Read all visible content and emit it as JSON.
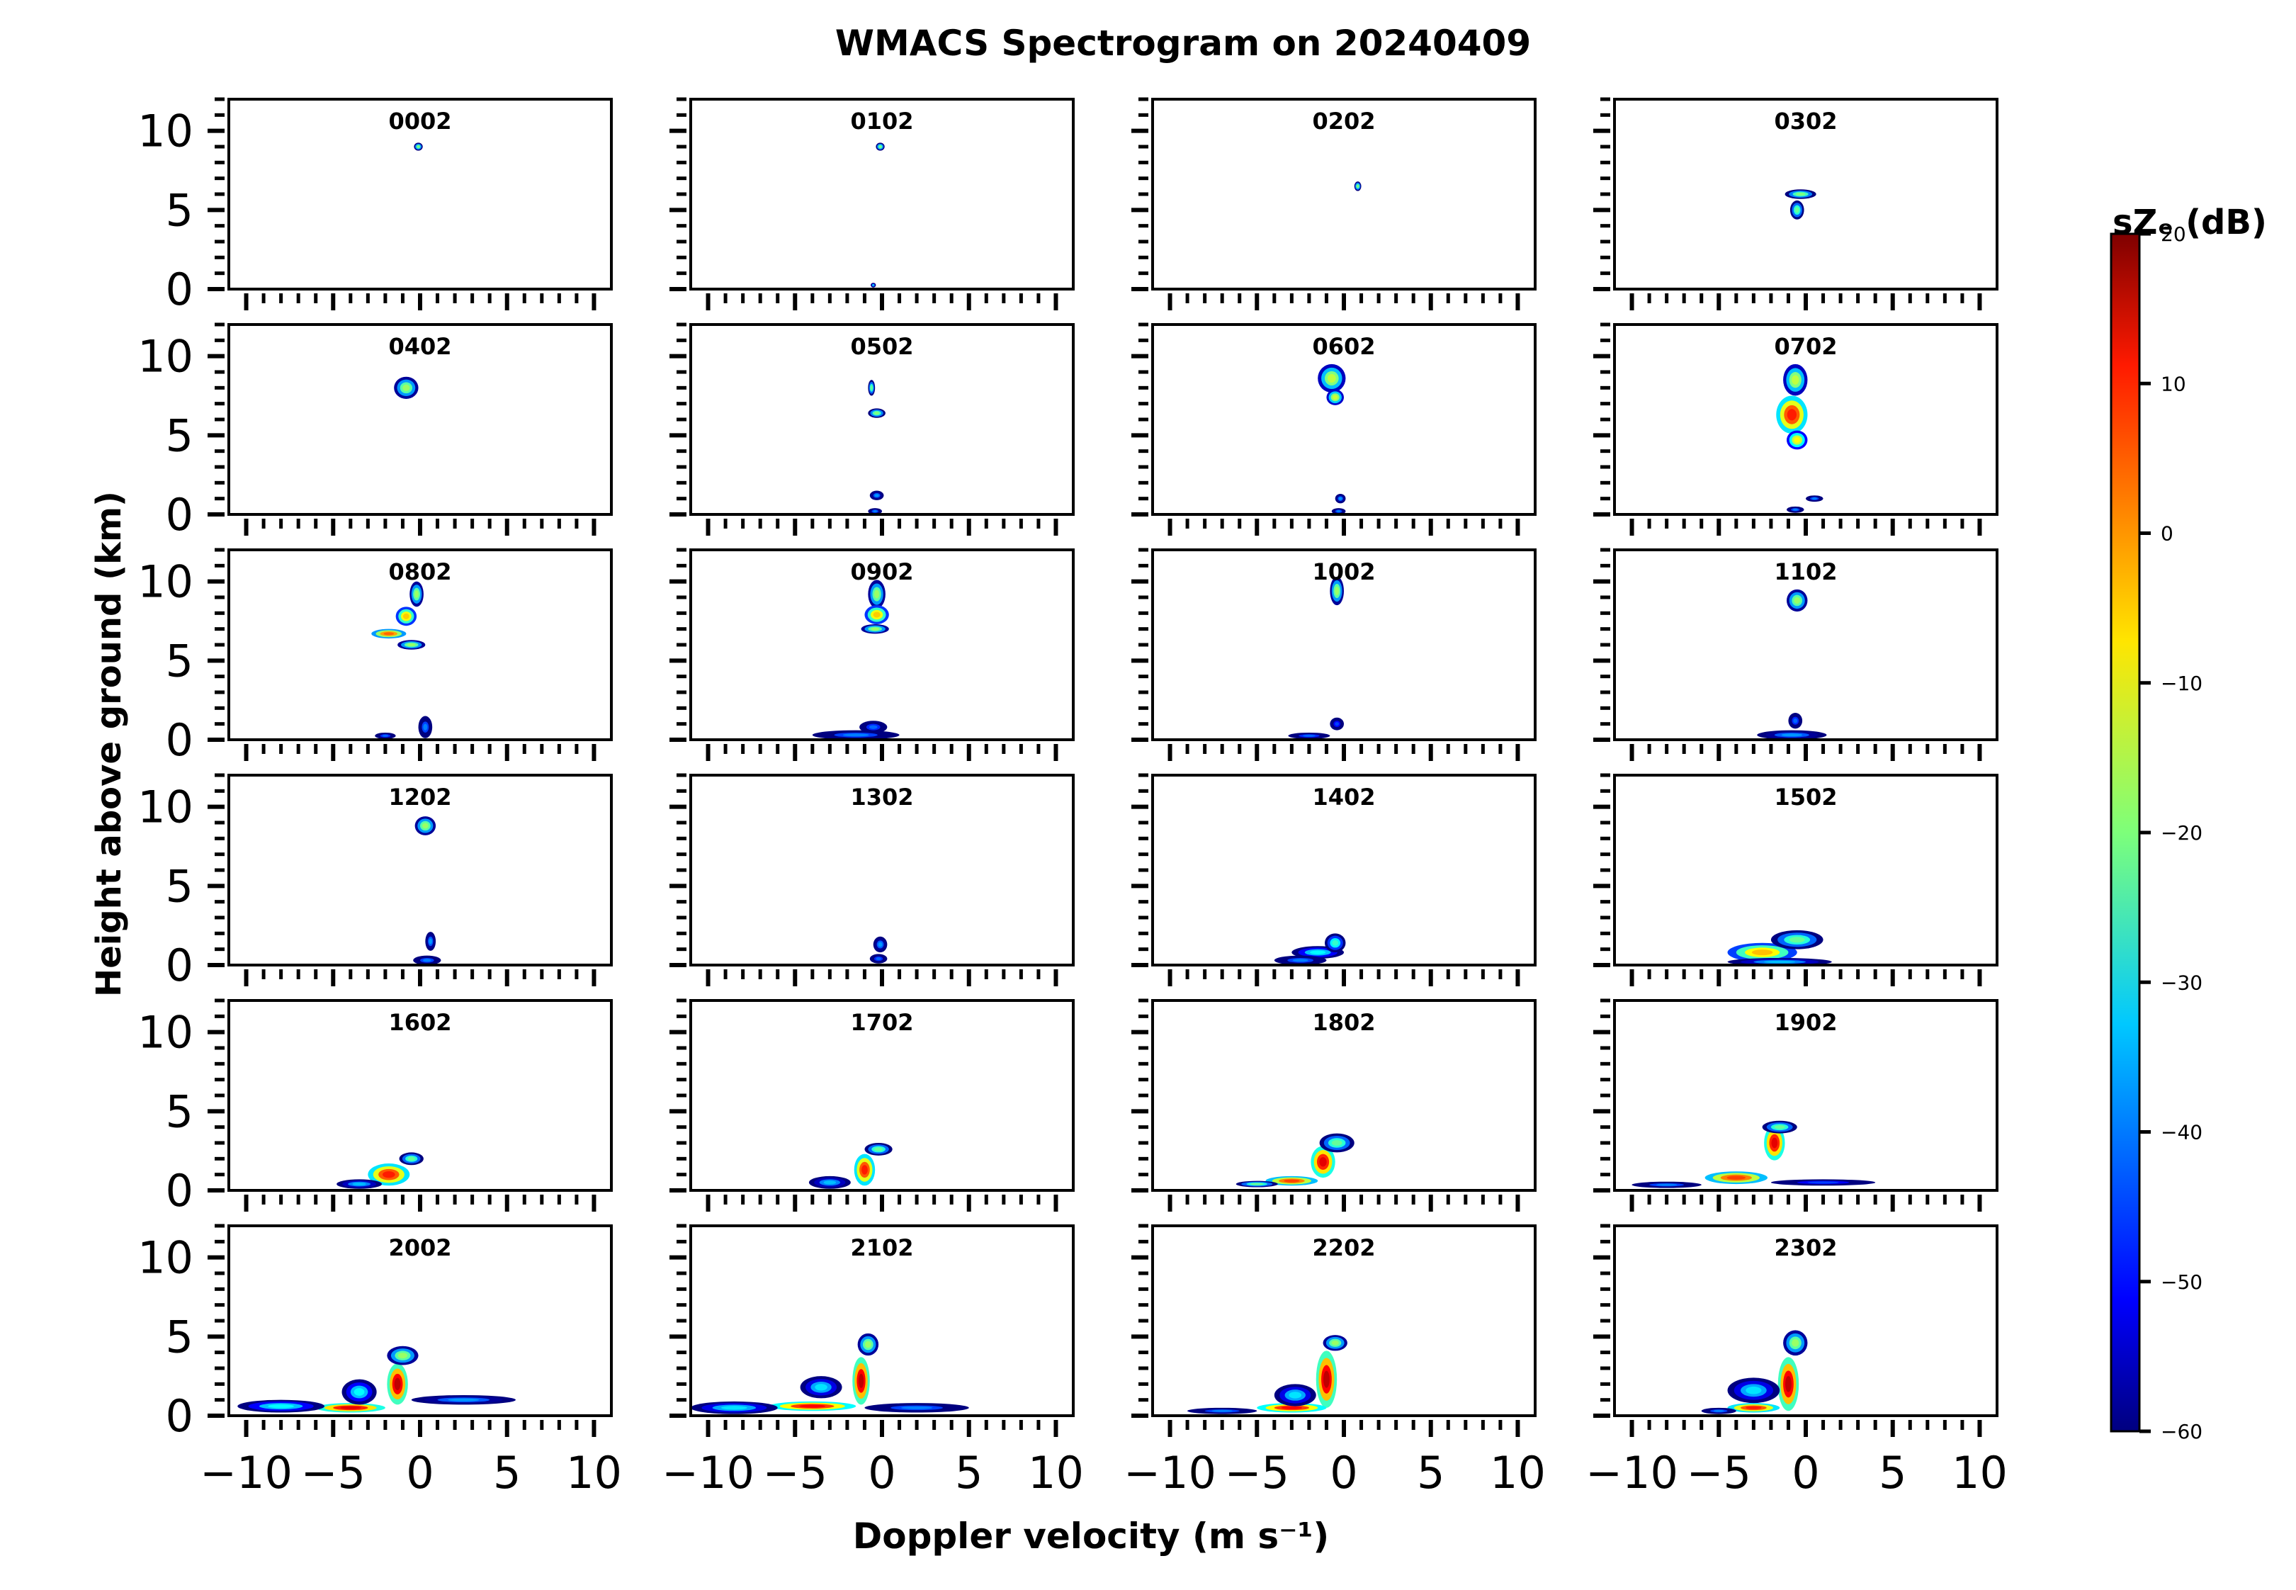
{
  "chart_data": {
    "type": "heatmap",
    "title": "WMACS Spectrogram on 20240409",
    "xlabel": "Doppler velocity (m s⁻¹)",
    "ylabel": "Height above ground (km)",
    "xlim": [
      -11,
      11
    ],
    "ylim": [
      0,
      12
    ],
    "xticks": [
      -10,
      -5,
      0,
      5,
      10
    ],
    "xtick_labels": [
      "−10",
      "−5",
      "0",
      "5",
      "10"
    ],
    "yticks": [
      0,
      5,
      10
    ],
    "ytick_labels": [
      "0",
      "5",
      "10"
    ],
    "colorbar": {
      "label": "sZₑ (dB)",
      "min": -60,
      "max": 20,
      "ticks": [
        20,
        10,
        0,
        -10,
        -20,
        -30,
        -40,
        -50,
        -60
      ],
      "tick_labels": [
        "20",
        "10",
        "0",
        "−10",
        "−20",
        "−30",
        "−40",
        "−50",
        "−60"
      ],
      "colormap": "jet"
    },
    "panels": [
      {
        "label": "0002",
        "blobs": [
          [
            -0.1,
            9.0,
            0.25,
            0.25,
            -20
          ]
        ]
      },
      {
        "label": "0102",
        "blobs": [
          [
            -0.1,
            9.0,
            0.25,
            0.25,
            -20
          ],
          [
            -0.5,
            0.25,
            0.15,
            0.15,
            -35
          ]
        ]
      },
      {
        "label": "0202",
        "blobs": [
          [
            0.8,
            6.5,
            0.2,
            0.3,
            -20
          ]
        ]
      },
      {
        "label": "0302",
        "blobs": [
          [
            -0.3,
            6.0,
            0.9,
            0.3,
            -20
          ],
          [
            -0.5,
            5.0,
            0.4,
            0.6,
            -22
          ]
        ]
      },
      {
        "label": "0402",
        "blobs": [
          [
            -0.8,
            8.0,
            0.7,
            0.7,
            -18
          ]
        ]
      },
      {
        "label": "0502",
        "blobs": [
          [
            -0.6,
            8.0,
            0.2,
            0.5,
            -22
          ],
          [
            -0.3,
            6.4,
            0.5,
            0.3,
            -20
          ],
          [
            -0.3,
            1.2,
            0.4,
            0.3,
            -38
          ],
          [
            -0.4,
            0.2,
            0.4,
            0.2,
            -40
          ]
        ]
      },
      {
        "label": "0602",
        "blobs": [
          [
            -0.7,
            8.6,
            0.8,
            0.9,
            -15
          ],
          [
            -0.5,
            7.4,
            0.5,
            0.5,
            -14
          ],
          [
            -0.2,
            1.0,
            0.3,
            0.3,
            -38
          ],
          [
            -0.3,
            0.2,
            0.4,
            0.2,
            -40
          ]
        ]
      },
      {
        "label": "0702",
        "blobs": [
          [
            -0.6,
            8.5,
            0.7,
            1.0,
            -15
          ],
          [
            -0.8,
            6.3,
            0.9,
            1.2,
            8
          ],
          [
            -0.5,
            4.7,
            0.6,
            0.6,
            -10
          ],
          [
            0.5,
            1.0,
            0.5,
            0.2,
            -40
          ],
          [
            -0.6,
            0.3,
            0.5,
            0.2,
            -40
          ]
        ]
      },
      {
        "label": "0802",
        "blobs": [
          [
            -0.2,
            9.2,
            0.4,
            0.8,
            -18
          ],
          [
            -0.8,
            7.8,
            0.6,
            0.6,
            -6
          ],
          [
            -1.8,
            6.7,
            1.0,
            0.3,
            2
          ],
          [
            -0.5,
            6.0,
            0.8,
            0.3,
            -18
          ],
          [
            0.3,
            0.8,
            0.4,
            0.7,
            -40
          ],
          [
            -2.0,
            0.25,
            0.6,
            0.2,
            -42
          ]
        ]
      },
      {
        "label": "0902",
        "blobs": [
          [
            -0.3,
            9.2,
            0.5,
            0.9,
            -18
          ],
          [
            -0.3,
            7.9,
            0.7,
            0.6,
            -6
          ],
          [
            -0.4,
            7.0,
            0.8,
            0.3,
            -18
          ],
          [
            -0.5,
            0.8,
            0.8,
            0.4,
            -42
          ],
          [
            -1.5,
            0.3,
            2.5,
            0.3,
            -40
          ]
        ]
      },
      {
        "label": "1002",
        "blobs": [
          [
            -0.4,
            9.4,
            0.4,
            0.9,
            -18
          ],
          [
            -0.4,
            1.0,
            0.4,
            0.4,
            -45
          ],
          [
            -2.0,
            0.25,
            1.2,
            0.2,
            -42
          ]
        ]
      },
      {
        "label": "1102",
        "blobs": [
          [
            -0.5,
            8.8,
            0.6,
            0.7,
            -18
          ],
          [
            -0.6,
            1.2,
            0.4,
            0.5,
            -42
          ],
          [
            -0.8,
            0.3,
            2.0,
            0.3,
            -38
          ]
        ]
      },
      {
        "label": "1202",
        "blobs": [
          [
            0.3,
            8.8,
            0.6,
            0.6,
            -18
          ],
          [
            0.6,
            1.5,
            0.3,
            0.6,
            -38
          ],
          [
            0.4,
            0.3,
            0.8,
            0.3,
            -40
          ]
        ]
      },
      {
        "label": "1302",
        "blobs": [
          [
            -0.1,
            1.3,
            0.4,
            0.5,
            -38
          ],
          [
            -0.2,
            0.4,
            0.5,
            0.3,
            -42
          ]
        ]
      },
      {
        "label": "1402",
        "blobs": [
          [
            -1.5,
            0.8,
            1.5,
            0.4,
            -30
          ],
          [
            -0.5,
            1.4,
            0.6,
            0.6,
            -26
          ],
          [
            -2.5,
            0.3,
            1.5,
            0.3,
            -40
          ]
        ]
      },
      {
        "label": "1502",
        "blobs": [
          [
            -2.5,
            0.8,
            2.0,
            0.6,
            -5
          ],
          [
            -0.5,
            1.6,
            1.5,
            0.6,
            -22
          ],
          [
            -1.5,
            0.2,
            3.0,
            0.25,
            -35
          ]
        ]
      },
      {
        "label": "1602",
        "blobs": [
          [
            -1.8,
            1.0,
            1.2,
            0.7,
            8
          ],
          [
            -0.5,
            2.0,
            0.7,
            0.4,
            -22
          ],
          [
            -3.5,
            0.4,
            1.3,
            0.3,
            -35
          ]
        ]
      },
      {
        "label": "1702",
        "blobs": [
          [
            -1.0,
            1.3,
            0.6,
            1.0,
            8
          ],
          [
            -0.2,
            2.6,
            0.8,
            0.4,
            -22
          ],
          [
            -3.0,
            0.5,
            1.2,
            0.4,
            -35
          ]
        ]
      },
      {
        "label": "1802",
        "blobs": [
          [
            -1.2,
            1.8,
            0.7,
            1.0,
            12
          ],
          [
            -3.0,
            0.6,
            1.5,
            0.3,
            5
          ],
          [
            -0.4,
            3.0,
            1.0,
            0.6,
            -22
          ],
          [
            -5.0,
            0.4,
            1.2,
            0.2,
            -22
          ]
        ]
      },
      {
        "label": "1902",
        "blobs": [
          [
            -1.8,
            3.0,
            0.6,
            1.1,
            12
          ],
          [
            -4.0,
            0.8,
            1.8,
            0.4,
            5
          ],
          [
            -8.0,
            0.35,
            2.0,
            0.2,
            -40
          ],
          [
            1.0,
            0.5,
            3.0,
            0.2,
            -45
          ],
          [
            -1.5,
            4.0,
            1.0,
            0.4,
            -22
          ]
        ]
      },
      {
        "label": "2002",
        "blobs": [
          [
            -1.3,
            2.0,
            0.6,
            1.3,
            15
          ],
          [
            -4.0,
            0.5,
            2.0,
            0.3,
            12
          ],
          [
            -8.0,
            0.6,
            2.5,
            0.4,
            -30
          ],
          [
            2.5,
            1.0,
            3.0,
            0.3,
            -38
          ],
          [
            -1.0,
            3.8,
            0.9,
            0.6,
            -18
          ],
          [
            -3.5,
            1.5,
            1.0,
            0.8,
            -30
          ]
        ]
      },
      {
        "label": "2102",
        "blobs": [
          [
            -1.2,
            2.2,
            0.5,
            1.5,
            15
          ],
          [
            -4.0,
            0.6,
            2.5,
            0.3,
            10
          ],
          [
            -8.5,
            0.5,
            2.5,
            0.4,
            -32
          ],
          [
            2.0,
            0.5,
            3.0,
            0.3,
            -40
          ],
          [
            -0.8,
            4.5,
            0.6,
            0.7,
            -18
          ],
          [
            -3.5,
            1.8,
            1.2,
            0.7,
            -32
          ]
        ]
      },
      {
        "label": "2202",
        "blobs": [
          [
            -1.0,
            2.3,
            0.6,
            1.8,
            15
          ],
          [
            -3.0,
            0.5,
            2.0,
            0.3,
            10
          ],
          [
            -7.0,
            0.3,
            2.0,
            0.2,
            -40
          ],
          [
            -0.5,
            4.6,
            0.7,
            0.5,
            -18
          ],
          [
            -2.8,
            1.3,
            1.2,
            0.7,
            -32
          ]
        ]
      },
      {
        "label": "2302",
        "blobs": [
          [
            -1.0,
            2.0,
            0.6,
            1.7,
            15
          ],
          [
            -3.0,
            0.5,
            1.5,
            0.3,
            8
          ],
          [
            -0.6,
            4.6,
            0.7,
            0.8,
            -18
          ],
          [
            -3.0,
            1.6,
            1.5,
            0.8,
            -32
          ],
          [
            -5.0,
            0.3,
            1.0,
            0.2,
            -40
          ]
        ]
      }
    ]
  }
}
